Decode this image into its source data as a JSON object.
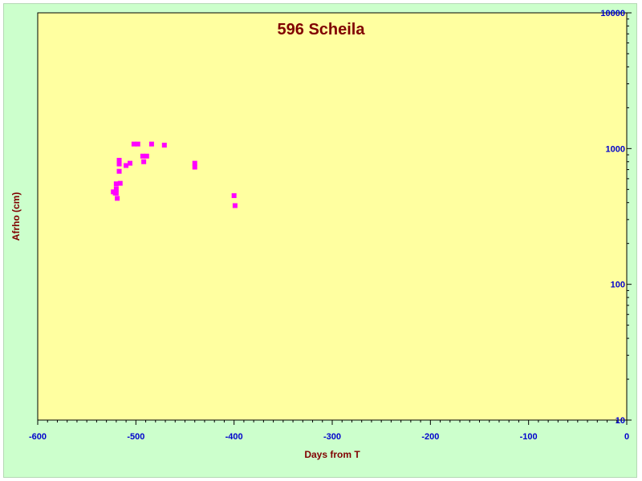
{
  "chart_data": {
    "type": "scatter",
    "title": "596 Scheila",
    "xlabel": "Days from T",
    "ylabel": "Afrho (cm)",
    "xlim": [
      -600,
      0
    ],
    "ylim": [
      10,
      10000
    ],
    "y_scale": "log",
    "x_ticks": [
      -600,
      -500,
      -400,
      -300,
      -200,
      -100,
      0
    ],
    "x_tick_labels": [
      "-600",
      "-500",
      "-400",
      "-300",
      "-200",
      "-100",
      "0"
    ],
    "y_ticks": [
      10,
      100,
      1000,
      10000
    ],
    "y_tick_labels": [
      "10",
      "100",
      "1000",
      "10000"
    ],
    "y_axis_side": "right",
    "grid": false,
    "background_color": "#ffffa0",
    "outer_background_color": "#ccffcc",
    "marker_color": "#ff00ff",
    "series": [
      {
        "points": [
          {
            "x": -523,
            "y": 480
          },
          {
            "x": -521,
            "y": 470
          },
          {
            "x": -520,
            "y": 550
          },
          {
            "x": -520,
            "y": 505
          },
          {
            "x": -520,
            "y": 470
          },
          {
            "x": -519,
            "y": 430
          },
          {
            "x": -517,
            "y": 820
          },
          {
            "x": -517,
            "y": 770
          },
          {
            "x": -517,
            "y": 680
          },
          {
            "x": -516,
            "y": 555
          },
          {
            "x": -510,
            "y": 750
          },
          {
            "x": -506,
            "y": 780
          },
          {
            "x": -502,
            "y": 1080
          },
          {
            "x": -498,
            "y": 1080
          },
          {
            "x": -493,
            "y": 880
          },
          {
            "x": -492,
            "y": 800
          },
          {
            "x": -489,
            "y": 880
          },
          {
            "x": -484,
            "y": 1080
          },
          {
            "x": -471,
            "y": 1060
          },
          {
            "x": -440,
            "y": 780
          },
          {
            "x": -440,
            "y": 730
          },
          {
            "x": -400,
            "y": 450
          },
          {
            "x": -399,
            "y": 380
          }
        ]
      }
    ]
  }
}
